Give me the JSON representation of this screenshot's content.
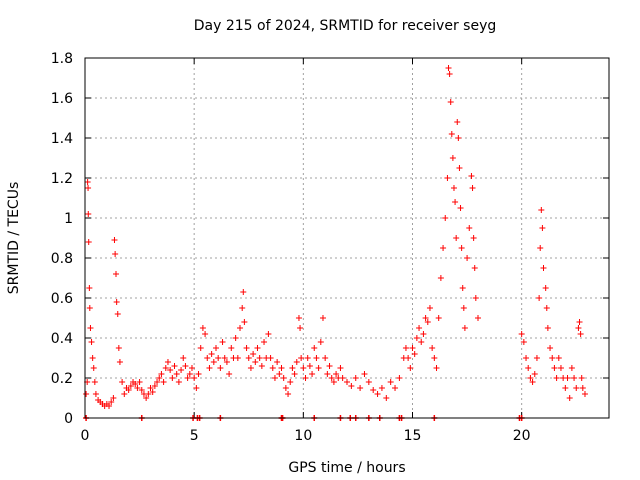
{
  "chart_data": {
    "type": "scatter",
    "title": "Day 215 of 2024, SRMTID for receiver seyg",
    "xlabel": "GPS time / hours",
    "ylabel": "SRMTID / TECUs",
    "xlim": [
      0,
      24
    ],
    "ylim": [
      0,
      1.8
    ],
    "xticks": [
      0,
      5,
      10,
      15,
      20
    ],
    "yticks": [
      0,
      0.2,
      0.4,
      0.6,
      0.8,
      1,
      1.2,
      1.4,
      1.6,
      1.8
    ],
    "grid": true,
    "marker": "+",
    "series": [
      {
        "name": "SRMTID",
        "color": "#ff0000",
        "points": [
          [
            0.05,
            0.12
          ],
          [
            0.1,
            0.18
          ],
          [
            0.12,
            1.18
          ],
          [
            0.14,
            1.15
          ],
          [
            0.15,
            1.02
          ],
          [
            0.17,
            0.88
          ],
          [
            0.2,
            0.65
          ],
          [
            0.22,
            0.55
          ],
          [
            0.25,
            0.45
          ],
          [
            0.3,
            0.38
          ],
          [
            0.35,
            0.3
          ],
          [
            0.4,
            0.25
          ],
          [
            0.45,
            0.18
          ],
          [
            0.5,
            0.12
          ],
          [
            0.6,
            0.09
          ],
          [
            0.7,
            0.08
          ],
          [
            0.8,
            0.07
          ],
          [
            0.9,
            0.06
          ],
          [
            1.0,
            0.07
          ],
          [
            1.1,
            0.06
          ],
          [
            1.2,
            0.08
          ],
          [
            1.3,
            0.1
          ],
          [
            1.35,
            0.89
          ],
          [
            1.38,
            0.82
          ],
          [
            1.42,
            0.72
          ],
          [
            1.45,
            0.58
          ],
          [
            1.5,
            0.52
          ],
          [
            1.55,
            0.35
          ],
          [
            1.6,
            0.28
          ],
          [
            1.7,
            0.18
          ],
          [
            1.8,
            0.12
          ],
          [
            1.9,
            0.15
          ],
          [
            2.0,
            0.14
          ],
          [
            2.1,
            0.16
          ],
          [
            2.2,
            0.18
          ],
          [
            2.3,
            0.17
          ],
          [
            2.4,
            0.15
          ],
          [
            2.5,
            0.18
          ],
          [
            2.6,
            0.14
          ],
          [
            2.7,
            0.12
          ],
          [
            2.8,
            0.1
          ],
          [
            2.9,
            0.12
          ],
          [
            3.0,
            0.15
          ],
          [
            3.1,
            0.13
          ],
          [
            3.2,
            0.16
          ],
          [
            3.3,
            0.18
          ],
          [
            3.4,
            0.2
          ],
          [
            3.5,
            0.22
          ],
          [
            3.6,
            0.18
          ],
          [
            3.7,
            0.25
          ],
          [
            3.8,
            0.28
          ],
          [
            3.9,
            0.24
          ],
          [
            4.0,
            0.2
          ],
          [
            4.1,
            0.26
          ],
          [
            4.2,
            0.22
          ],
          [
            4.3,
            0.18
          ],
          [
            4.4,
            0.24
          ],
          [
            4.5,
            0.3
          ],
          [
            4.6,
            0.26
          ],
          [
            4.7,
            0.2
          ],
          [
            4.8,
            0.22
          ],
          [
            4.9,
            0.25
          ],
          [
            5.0,
            0.2
          ],
          [
            5.1,
            0.15
          ],
          [
            5.2,
            0.22
          ],
          [
            5.3,
            0.35
          ],
          [
            5.4,
            0.45
          ],
          [
            5.5,
            0.42
          ],
          [
            5.6,
            0.3
          ],
          [
            5.7,
            0.25
          ],
          [
            5.8,
            0.32
          ],
          [
            5.9,
            0.28
          ],
          [
            6.0,
            0.35
          ],
          [
            6.1,
            0.3
          ],
          [
            6.2,
            0.25
          ],
          [
            6.3,
            0.38
          ],
          [
            6.4,
            0.3
          ],
          [
            6.5,
            0.28
          ],
          [
            6.6,
            0.22
          ],
          [
            6.7,
            0.35
          ],
          [
            6.8,
            0.3
          ],
          [
            6.9,
            0.4
          ],
          [
            7.0,
            0.3
          ],
          [
            7.1,
            0.45
          ],
          [
            7.2,
            0.55
          ],
          [
            7.25,
            0.63
          ],
          [
            7.3,
            0.48
          ],
          [
            7.4,
            0.35
          ],
          [
            7.5,
            0.3
          ],
          [
            7.6,
            0.25
          ],
          [
            7.7,
            0.32
          ],
          [
            7.8,
            0.28
          ],
          [
            7.9,
            0.35
          ],
          [
            8.0,
            0.3
          ],
          [
            8.1,
            0.26
          ],
          [
            8.2,
            0.38
          ],
          [
            8.3,
            0.3
          ],
          [
            8.4,
            0.42
          ],
          [
            8.5,
            0.3
          ],
          [
            8.6,
            0.25
          ],
          [
            8.7,
            0.2
          ],
          [
            8.8,
            0.28
          ],
          [
            8.9,
            0.22
          ],
          [
            9.0,
            0.25
          ],
          [
            9.1,
            0.2
          ],
          [
            9.2,
            0.15
          ],
          [
            9.3,
            0.12
          ],
          [
            9.4,
            0.18
          ],
          [
            9.5,
            0.25
          ],
          [
            9.6,
            0.22
          ],
          [
            9.7,
            0.28
          ],
          [
            9.8,
            0.5
          ],
          [
            9.85,
            0.45
          ],
          [
            9.9,
            0.3
          ],
          [
            10.0,
            0.25
          ],
          [
            10.1,
            0.2
          ],
          [
            10.2,
            0.3
          ],
          [
            10.3,
            0.26
          ],
          [
            10.4,
            0.22
          ],
          [
            10.5,
            0.35
          ],
          [
            10.6,
            0.3
          ],
          [
            10.7,
            0.25
          ],
          [
            10.8,
            0.38
          ],
          [
            10.9,
            0.5
          ],
          [
            11.0,
            0.3
          ],
          [
            11.1,
            0.22
          ],
          [
            11.2,
            0.26
          ],
          [
            11.3,
            0.2
          ],
          [
            11.4,
            0.18
          ],
          [
            11.5,
            0.22
          ],
          [
            11.6,
            0.2
          ],
          [
            11.7,
            0.25
          ],
          [
            11.8,
            0.2
          ],
          [
            12.0,
            0.18
          ],
          [
            12.2,
            0.16
          ],
          [
            12.4,
            0.2
          ],
          [
            12.6,
            0.15
          ],
          [
            12.8,
            0.22
          ],
          [
            13.0,
            0.18
          ],
          [
            13.2,
            0.14
          ],
          [
            13.4,
            0.12
          ],
          [
            13.6,
            0.15
          ],
          [
            13.8,
            0.1
          ],
          [
            14.0,
            0.18
          ],
          [
            14.2,
            0.15
          ],
          [
            14.4,
            0.2
          ],
          [
            14.6,
            0.3
          ],
          [
            14.7,
            0.35
          ],
          [
            14.8,
            0.3
          ],
          [
            14.9,
            0.25
          ],
          [
            15.0,
            0.35
          ],
          [
            15.1,
            0.32
          ],
          [
            15.2,
            0.4
          ],
          [
            15.3,
            0.45
          ],
          [
            15.4,
            0.38
          ],
          [
            15.5,
            0.42
          ],
          [
            15.6,
            0.5
          ],
          [
            15.7,
            0.48
          ],
          [
            15.8,
            0.55
          ],
          [
            15.9,
            0.35
          ],
          [
            16.0,
            0.3
          ],
          [
            16.1,
            0.25
          ],
          [
            16.2,
            0.5
          ],
          [
            16.3,
            0.7
          ],
          [
            16.4,
            0.85
          ],
          [
            16.5,
            1.0
          ],
          [
            16.6,
            1.2
          ],
          [
            16.65,
            1.75
          ],
          [
            16.7,
            1.72
          ],
          [
            16.75,
            1.58
          ],
          [
            16.8,
            1.42
          ],
          [
            16.85,
            1.3
          ],
          [
            16.9,
            1.15
          ],
          [
            16.95,
            1.08
          ],
          [
            17.0,
            0.9
          ],
          [
            17.05,
            1.48
          ],
          [
            17.1,
            1.4
          ],
          [
            17.15,
            1.25
          ],
          [
            17.2,
            1.05
          ],
          [
            17.25,
            0.85
          ],
          [
            17.3,
            0.65
          ],
          [
            17.35,
            0.55
          ],
          [
            17.4,
            0.45
          ],
          [
            17.5,
            0.8
          ],
          [
            17.6,
            0.95
          ],
          [
            17.7,
            1.21
          ],
          [
            17.75,
            1.15
          ],
          [
            17.8,
            0.9
          ],
          [
            17.85,
            0.75
          ],
          [
            17.9,
            0.6
          ],
          [
            18.0,
            0.5
          ],
          [
            20.0,
            0.42
          ],
          [
            20.1,
            0.38
          ],
          [
            20.2,
            0.3
          ],
          [
            20.3,
            0.25
          ],
          [
            20.4,
            0.2
          ],
          [
            20.5,
            0.18
          ],
          [
            20.6,
            0.22
          ],
          [
            20.7,
            0.3
          ],
          [
            20.8,
            0.6
          ],
          [
            20.85,
            0.85
          ],
          [
            20.9,
            1.04
          ],
          [
            20.95,
            0.95
          ],
          [
            21.0,
            0.75
          ],
          [
            21.1,
            0.65
          ],
          [
            21.15,
            0.55
          ],
          [
            21.2,
            0.45
          ],
          [
            21.3,
            0.35
          ],
          [
            21.4,
            0.3
          ],
          [
            21.5,
            0.25
          ],
          [
            21.6,
            0.2
          ],
          [
            21.7,
            0.3
          ],
          [
            21.8,
            0.25
          ],
          [
            21.9,
            0.2
          ],
          [
            22.0,
            0.15
          ],
          [
            22.1,
            0.2
          ],
          [
            22.2,
            0.1
          ],
          [
            22.3,
            0.25
          ],
          [
            22.4,
            0.2
          ],
          [
            22.5,
            0.15
          ],
          [
            22.6,
            0.45
          ],
          [
            22.65,
            0.48
          ],
          [
            22.7,
            0.42
          ],
          [
            22.75,
            0.2
          ],
          [
            22.8,
            0.15
          ],
          [
            22.9,
            0.12
          ]
        ]
      }
    ],
    "gap_markers_x": [
      0.05,
      2.6,
      4.95,
      5.15,
      5.25,
      6.2,
      9.0,
      9.05,
      10.5,
      11.7,
      12.15,
      12.4,
      13.0,
      13.5,
      14.4,
      14.5,
      16.0,
      19.9,
      20.0
    ]
  }
}
